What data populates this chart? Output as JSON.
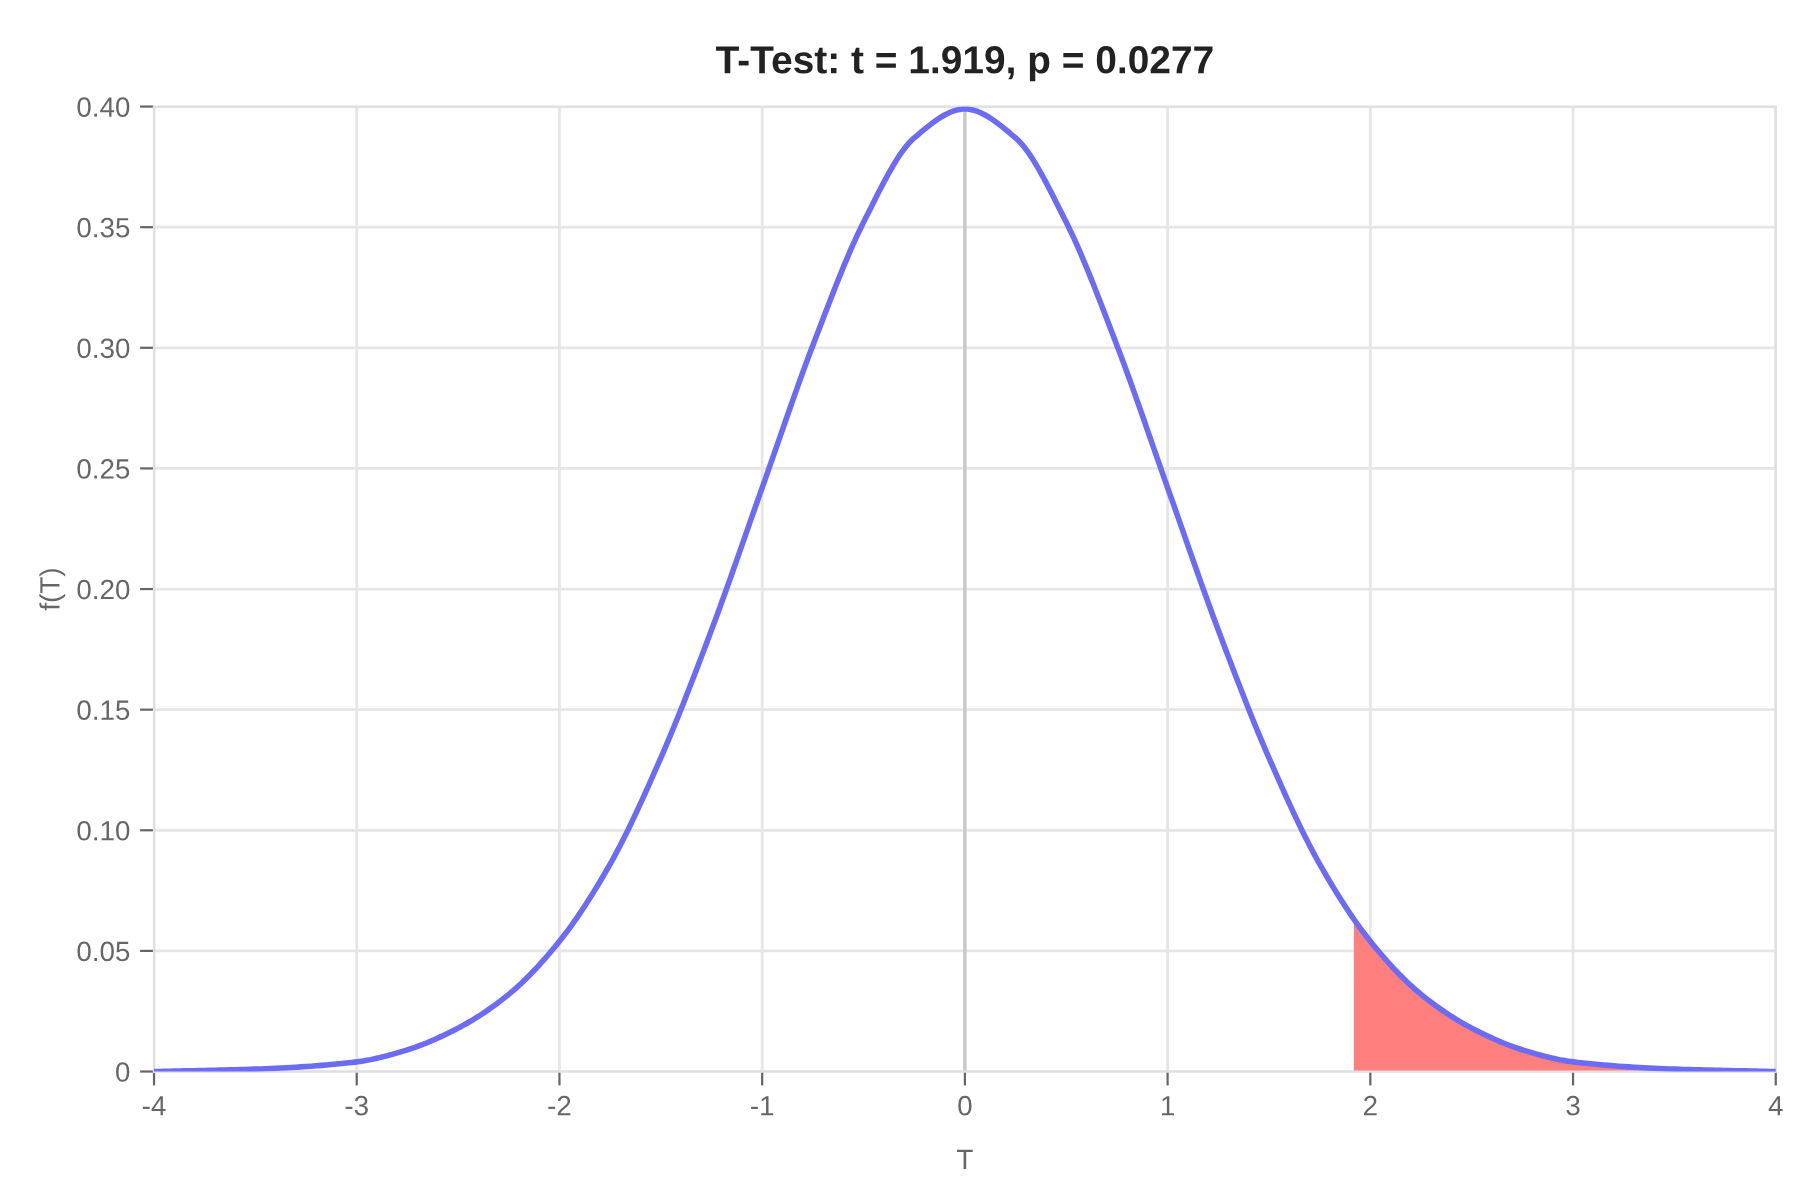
{
  "chart_data": {
    "type": "line",
    "title": "T-Test: t = 1.919, p = 0.0277",
    "xlabel": "T",
    "ylabel": "f(T)",
    "series": [
      {
        "color": "#6b6bf5",
        "x": [
          -4,
          -3.5,
          -3,
          -2.75,
          -2.5,
          -2.25,
          -2,
          -1.75,
          -1.5,
          -1.25,
          -1,
          -0.75,
          -0.5,
          -0.25,
          0,
          0.25,
          0.5,
          0.75,
          1,
          1.25,
          1.5,
          1.75,
          2,
          2.25,
          2.5,
          2.75,
          3,
          3.5,
          4
        ],
        "values": [
          0,
          0.001,
          0.004,
          0.009,
          0.018,
          0.032,
          0.054,
          0.086,
          0.13,
          0.183,
          0.242,
          0.301,
          0.352,
          0.387,
          0.399,
          0.387,
          0.352,
          0.301,
          0.242,
          0.183,
          0.13,
          0.086,
          0.054,
          0.032,
          0.018,
          0.009,
          0.004,
          0.001,
          0
        ]
      },
      {
        "type": "area",
        "color": "#ff7f7f",
        "x": [
          1.919,
          2,
          2.25,
          2.5,
          2.75,
          3,
          3.5,
          4
        ],
        "values": [
          0.063,
          0.054,
          0.032,
          0.018,
          0.009,
          0.004,
          0.001,
          0
        ]
      }
    ],
    "xlim": [
      -4,
      4
    ],
    "xticks": [
      -4,
      -3,
      -2,
      -1,
      0,
      1,
      2,
      3,
      4
    ],
    "ylim": [
      0,
      0.4
    ],
    "yticks": [
      0,
      {
        "value": 0.05,
        "label": "0.05"
      },
      {
        "value": 0.1,
        "label": "0.10"
      },
      {
        "value": 0.15,
        "label": "0.15"
      },
      {
        "value": 0.2,
        "label": "0.20"
      },
      {
        "value": 0.25,
        "label": "0.25"
      },
      {
        "value": 0.3,
        "label": "0.30"
      },
      {
        "value": 0.35,
        "label": "0.35"
      },
      {
        "value": 0.4,
        "label": "0.40"
      }
    ],
    "ref_lines": [
      {
        "axis": "x",
        "value": 0,
        "color": "#c8c8c8"
      }
    ],
    "grid": true
  }
}
